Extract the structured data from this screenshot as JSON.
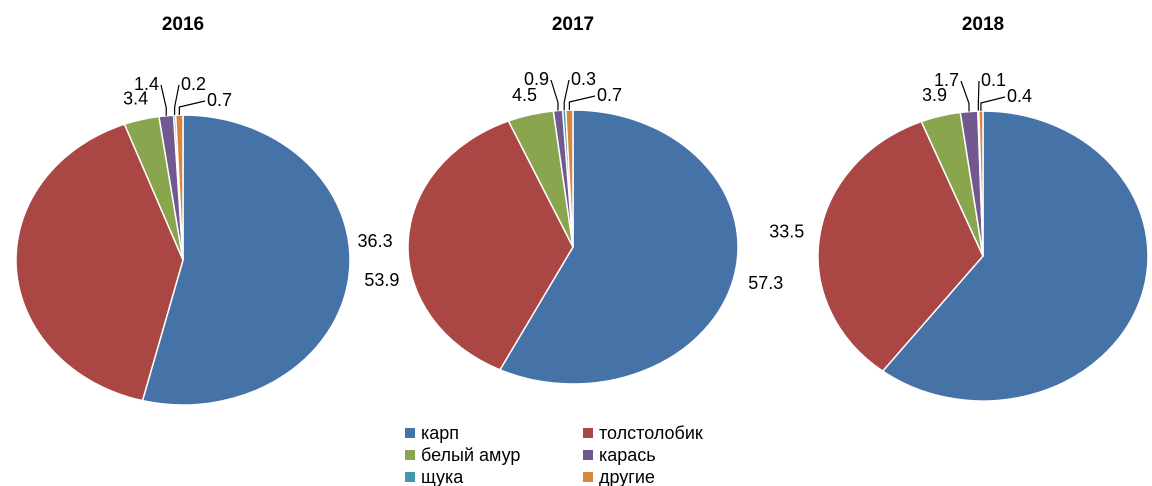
{
  "chart_data": [
    {
      "type": "pie",
      "title": "2016",
      "categories": [
        "карп",
        "толстолобик",
        "белый амур",
        "карась",
        "щука",
        "другие"
      ],
      "values": [
        53.9,
        40.4,
        3.4,
        1.4,
        0.2,
        0.7
      ],
      "colors": [
        "#4572a7",
        "#aa4643",
        "#89a54e",
        "#71588f",
        "#4198af",
        "#db843d"
      ]
    },
    {
      "type": "pie",
      "title": "2017",
      "categories": [
        "карп",
        "толстолобик",
        "белый амур",
        "карась",
        "щука",
        "другие"
      ],
      "values": [
        57.3,
        36.3,
        4.5,
        0.9,
        0.3,
        0.7
      ],
      "colors": [
        "#4572a7",
        "#aa4643",
        "#89a54e",
        "#71588f",
        "#4198af",
        "#db843d"
      ]
    },
    {
      "type": "pie",
      "title": "2018",
      "categories": [
        "карп",
        "толстолобик",
        "белый амур",
        "карась",
        "щука",
        "другие"
      ],
      "values": [
        60.4,
        33.5,
        3.9,
        1.7,
        0.1,
        0.4
      ],
      "colors": [
        "#4572a7",
        "#aa4643",
        "#89a54e",
        "#71588f",
        "#4198af",
        "#db843d"
      ]
    }
  ]
}
